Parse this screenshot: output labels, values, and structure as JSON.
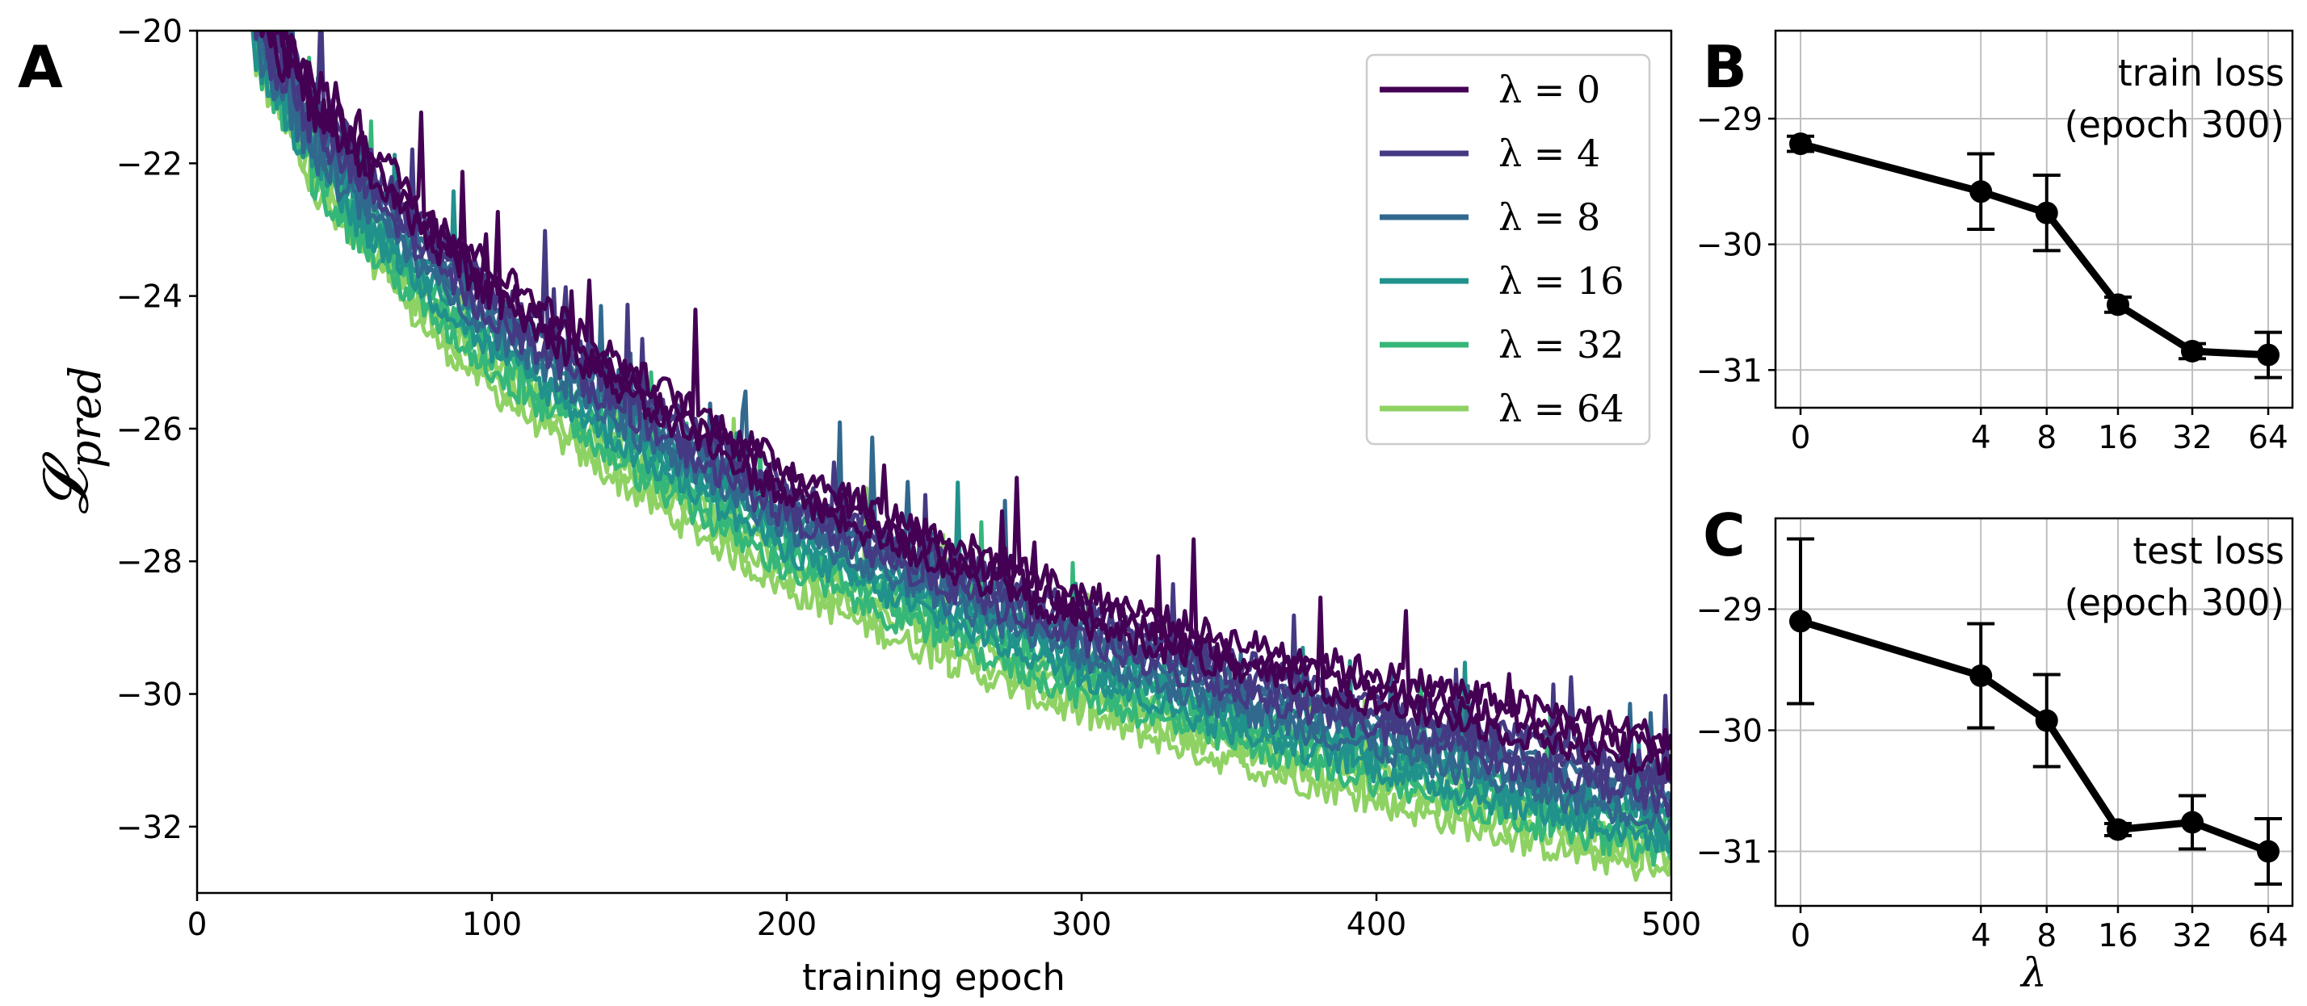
{
  "chart_data": [
    {
      "panel": "A",
      "type": "line",
      "xlabel": "training epoch",
      "ylabel": "𝓛",
      "ylabel_sub": "pred",
      "xlim": [
        0,
        500
      ],
      "ylim": [
        -33,
        -20
      ],
      "xticks": [
        0,
        100,
        200,
        300,
        400,
        500
      ],
      "yticks": [
        -20,
        -22,
        -24,
        -26,
        -28,
        -30,
        -32
      ],
      "legend_position": "top-right",
      "series": [
        {
          "name": "λ = 0",
          "lambda": "0",
          "color": "#440154",
          "curve": [
            [
              20,
              -19.6
            ],
            [
              40,
              -21.0
            ],
            [
              60,
              -22.0
            ],
            [
              80,
              -23.0
            ],
            [
              100,
              -23.8
            ],
            [
              150,
              -25.4
            ],
            [
              200,
              -26.8
            ],
            [
              250,
              -27.8
            ],
            [
              300,
              -28.7
            ],
            [
              350,
              -29.4
            ],
            [
              400,
              -29.9
            ],
            [
              450,
              -30.4
            ],
            [
              500,
              -30.9
            ]
          ]
        },
        {
          "name": "λ = 4",
          "lambda": "4",
          "color": "#443a83",
          "curve": [
            [
              20,
              -19.8
            ],
            [
              40,
              -21.3
            ],
            [
              60,
              -22.3
            ],
            [
              80,
              -23.3
            ],
            [
              100,
              -24.1
            ],
            [
              150,
              -25.7
            ],
            [
              200,
              -27.1
            ],
            [
              250,
              -28.1
            ],
            [
              300,
              -29.0
            ],
            [
              350,
              -29.7
            ],
            [
              400,
              -30.3
            ],
            [
              450,
              -30.9
            ],
            [
              500,
              -31.4
            ]
          ]
        },
        {
          "name": "λ = 8",
          "lambda": "8",
          "color": "#31688e",
          "curve": [
            [
              20,
              -20.0
            ],
            [
              40,
              -21.6
            ],
            [
              60,
              -22.6
            ],
            [
              80,
              -23.5
            ],
            [
              100,
              -24.3
            ],
            [
              150,
              -25.9
            ],
            [
              200,
              -27.3
            ],
            [
              250,
              -28.3
            ],
            [
              300,
              -29.2
            ],
            [
              350,
              -30.0
            ],
            [
              400,
              -30.6
            ],
            [
              450,
              -31.2
            ],
            [
              500,
              -31.7
            ]
          ]
        },
        {
          "name": "λ = 16",
          "lambda": "16",
          "color": "#21918c",
          "curve": [
            [
              20,
              -20.1
            ],
            [
              40,
              -21.8
            ],
            [
              60,
              -22.9
            ],
            [
              80,
              -23.8
            ],
            [
              100,
              -24.6
            ],
            [
              150,
              -26.2
            ],
            [
              200,
              -27.6
            ],
            [
              250,
              -28.6
            ],
            [
              300,
              -29.5
            ],
            [
              350,
              -30.3
            ],
            [
              400,
              -30.9
            ],
            [
              450,
              -31.5
            ],
            [
              500,
              -32.0
            ]
          ]
        },
        {
          "name": "λ = 32",
          "lambda": "32",
          "color": "#35b779",
          "curve": [
            [
              20,
              -20.2
            ],
            [
              40,
              -22.0
            ],
            [
              60,
              -23.2
            ],
            [
              80,
              -24.1
            ],
            [
              100,
              -24.9
            ],
            [
              150,
              -26.5
            ],
            [
              200,
              -27.9
            ],
            [
              250,
              -28.9
            ],
            [
              300,
              -29.8
            ],
            [
              350,
              -30.5
            ],
            [
              400,
              -31.1
            ],
            [
              450,
              -31.7
            ],
            [
              500,
              -32.2
            ]
          ]
        },
        {
          "name": "λ = 64",
          "lambda": "64",
          "color": "#8fd264",
          "curve": [
            [
              20,
              -20.3
            ],
            [
              40,
              -22.2
            ],
            [
              60,
              -23.4
            ],
            [
              80,
              -24.4
            ],
            [
              100,
              -25.2
            ],
            [
              150,
              -26.8
            ],
            [
              200,
              -28.2
            ],
            [
              250,
              -29.2
            ],
            [
              300,
              -30.1
            ],
            [
              350,
              -30.8
            ],
            [
              400,
              -31.4
            ],
            [
              450,
              -32.0
            ],
            [
              500,
              -32.5
            ]
          ]
        }
      ]
    },
    {
      "panel": "B",
      "type": "line",
      "annotation": [
        "train loss",
        "(epoch 300)"
      ],
      "xlabel": "",
      "ylabel": "",
      "x_scale": "symlog",
      "categories": [
        "0",
        "4",
        "8",
        "16",
        "32",
        "64"
      ],
      "x": [
        0,
        4,
        8,
        16,
        32,
        64
      ],
      "values": [
        -29.2,
        -29.58,
        -29.75,
        -30.48,
        -30.85,
        -30.88
      ],
      "errors": [
        0.06,
        0.3,
        0.3,
        0.06,
        0.06,
        0.18
      ],
      "ylim": [
        -31.3,
        -28.3
      ],
      "yticks": [
        -29,
        -30,
        -31
      ]
    },
    {
      "panel": "C",
      "type": "line",
      "annotation": [
        "test loss",
        "(epoch 300)"
      ],
      "xlabel": "λ",
      "ylabel": "",
      "x_scale": "symlog",
      "categories": [
        "0",
        "4",
        "8",
        "16",
        "32",
        "64"
      ],
      "x": [
        0,
        4,
        8,
        16,
        32,
        64
      ],
      "values": [
        -29.1,
        -29.55,
        -29.92,
        -30.82,
        -30.76,
        -31.0
      ],
      "errors": [
        0.68,
        0.43,
        0.38,
        0.05,
        0.22,
        0.27
      ],
      "ylim": [
        -31.45,
        -28.25
      ],
      "yticks": [
        -29,
        -30,
        -31
      ]
    }
  ]
}
